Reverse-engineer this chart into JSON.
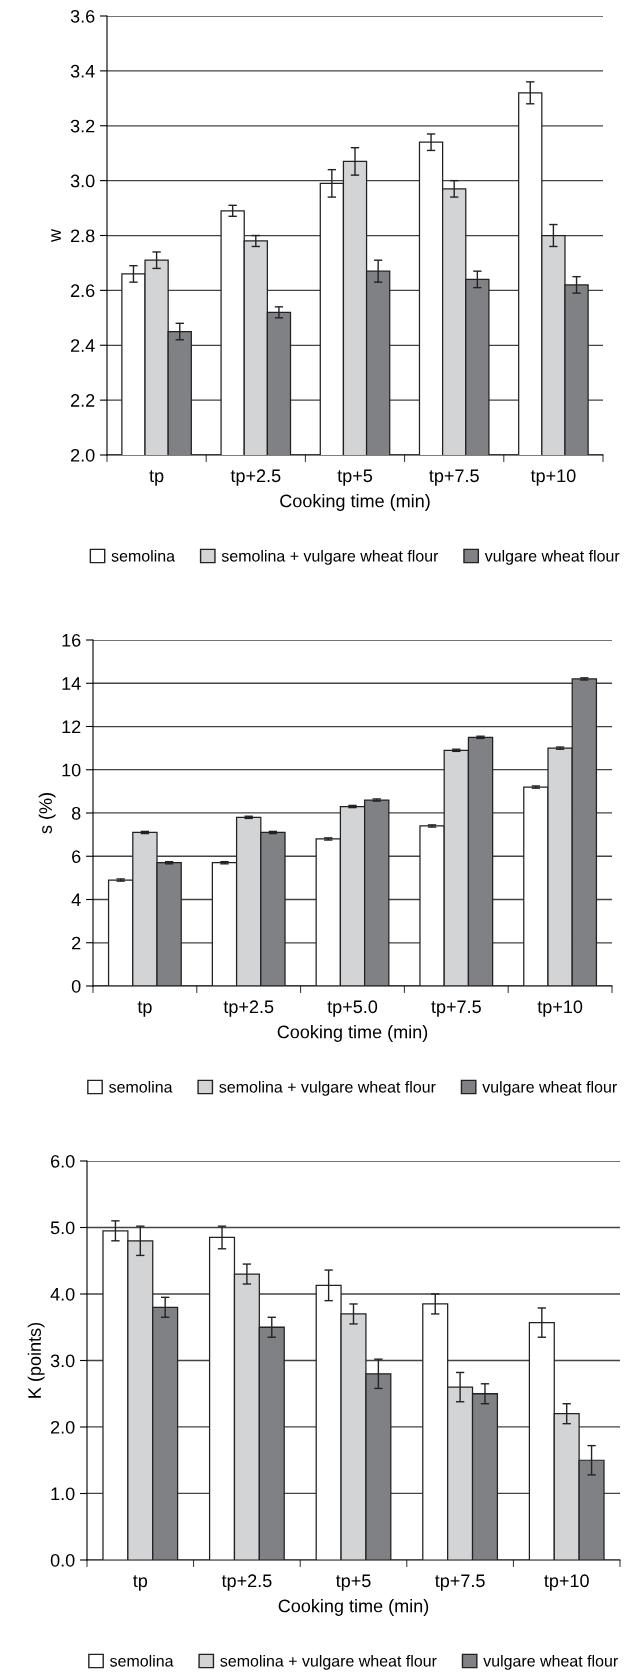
{
  "chart_data": [
    {
      "type": "bar",
      "xlabel": "Cooking time (min)",
      "ylabel": "w",
      "categories": [
        "tp",
        "tp+2.5",
        "tp+5",
        "tp+7.5",
        "tp+10"
      ],
      "ylim": [
        2.0,
        3.6
      ],
      "yticks": [
        {
          "value": 2.0,
          "label": "2.0"
        },
        {
          "value": 2.2,
          "label": "2.2"
        },
        {
          "value": 2.4,
          "label": "2.4"
        },
        {
          "value": 2.6,
          "label": "2.6"
        },
        {
          "value": 2.8,
          "label": "2.8"
        },
        {
          "value": 3.0,
          "label": "3.0"
        },
        {
          "value": 3.2,
          "label": "3.2"
        },
        {
          "value": 3.4,
          "label": "3.4"
        },
        {
          "value": 3.6,
          "label": "3.6"
        }
      ],
      "grid": "y",
      "legend": "bottom",
      "series": [
        {
          "name": "semolina",
          "color": "#ffffff",
          "values": [
            2.66,
            2.89,
            2.99,
            3.14,
            3.32
          ],
          "errors": [
            0.03,
            0.02,
            0.05,
            0.03,
            0.04
          ]
        },
        {
          "name": "semolina + vulgare wheat flour",
          "color": "#d3d4d6",
          "values": [
            2.71,
            2.78,
            3.07,
            2.97,
            2.8
          ],
          "errors": [
            0.03,
            0.02,
            0.05,
            0.03,
            0.04
          ]
        },
        {
          "name": "vulgare wheat flour",
          "color": "#808184",
          "values": [
            2.45,
            2.52,
            2.67,
            2.64,
            2.62
          ],
          "errors": [
            0.03,
            0.02,
            0.04,
            0.03,
            0.03
          ]
        }
      ]
    },
    {
      "type": "bar",
      "xlabel": "Cooking time (min)",
      "ylabel": "s (%)",
      "categories": [
        "tp",
        "tp+2.5",
        "tp+5.0",
        "tp+7.5",
        "tp+10"
      ],
      "ylim": [
        0,
        16
      ],
      "yticks": [
        0,
        2,
        4,
        6,
        8,
        10,
        12,
        14,
        16
      ],
      "grid": "y",
      "legend": "bottom",
      "series": [
        {
          "name": "semolina",
          "color": "#ffffff",
          "values": [
            4.9,
            5.7,
            6.8,
            7.4,
            9.2
          ],
          "errors": [
            0.05,
            0.05,
            0.05,
            0.05,
            0.05
          ]
        },
        {
          "name": "semolina + vulgare wheat flour",
          "color": "#d3d4d6",
          "values": [
            7.1,
            7.8,
            8.3,
            10.9,
            11.0
          ],
          "errors": [
            0.05,
            0.05,
            0.05,
            0.05,
            0.05
          ]
        },
        {
          "name": "vulgare wheat flour",
          "color": "#808184",
          "values": [
            5.7,
            7.1,
            8.6,
            11.5,
            14.2
          ],
          "errors": [
            0.05,
            0.05,
            0.05,
            0.05,
            0.05
          ]
        }
      ]
    },
    {
      "type": "bar",
      "xlabel": "Cooking time (min)",
      "ylabel": "K (points)",
      "categories": [
        "tp",
        "tp+2.5",
        "tp+5",
        "tp+7.5",
        "tp+10"
      ],
      "ylim": [
        0.0,
        6.0
      ],
      "yticks": [
        {
          "value": 0,
          "label": "0.0"
        },
        {
          "value": 1,
          "label": "1.0"
        },
        {
          "value": 2,
          "label": "2.0"
        },
        {
          "value": 3,
          "label": "3.0"
        },
        {
          "value": 4,
          "label": "4.0"
        },
        {
          "value": 5,
          "label": "5.0"
        },
        {
          "value": 6,
          "label": "6.0"
        }
      ],
      "grid": "y",
      "legend": "bottom",
      "series": [
        {
          "name": "semolina",
          "color": "#ffffff",
          "values": [
            4.95,
            4.85,
            4.13,
            3.85,
            3.57
          ],
          "errors": [
            0.15,
            0.17,
            0.23,
            0.15,
            0.22
          ]
        },
        {
          "name": "semolina + vulgare wheat flour",
          "color": "#d3d4d6",
          "values": [
            4.8,
            4.3,
            3.7,
            2.6,
            2.2
          ],
          "errors": [
            0.22,
            0.15,
            0.15,
            0.22,
            0.15
          ]
        },
        {
          "name": "vulgare wheat flour",
          "color": "#808184",
          "values": [
            3.8,
            3.5,
            2.8,
            2.5,
            1.5
          ],
          "errors": [
            0.15,
            0.15,
            0.22,
            0.15,
            0.22
          ]
        }
      ]
    }
  ]
}
